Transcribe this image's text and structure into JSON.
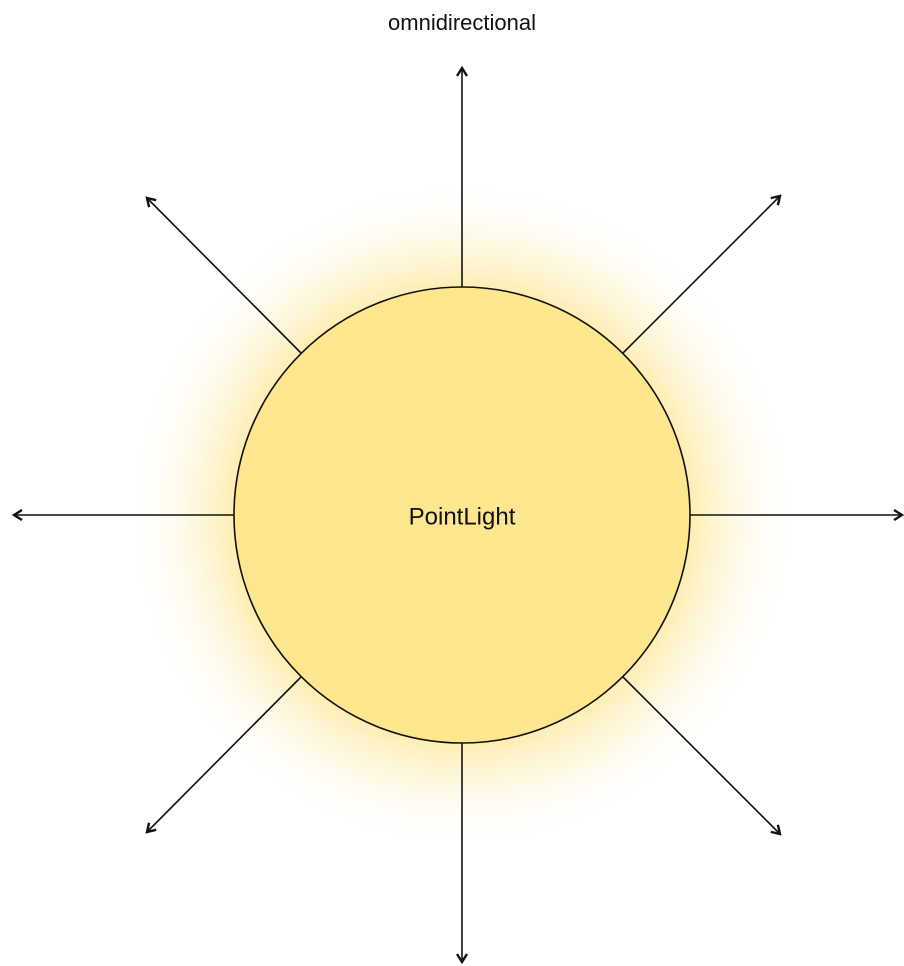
{
  "title": "omnidirectional",
  "node": {
    "label": "PointLight"
  }
}
